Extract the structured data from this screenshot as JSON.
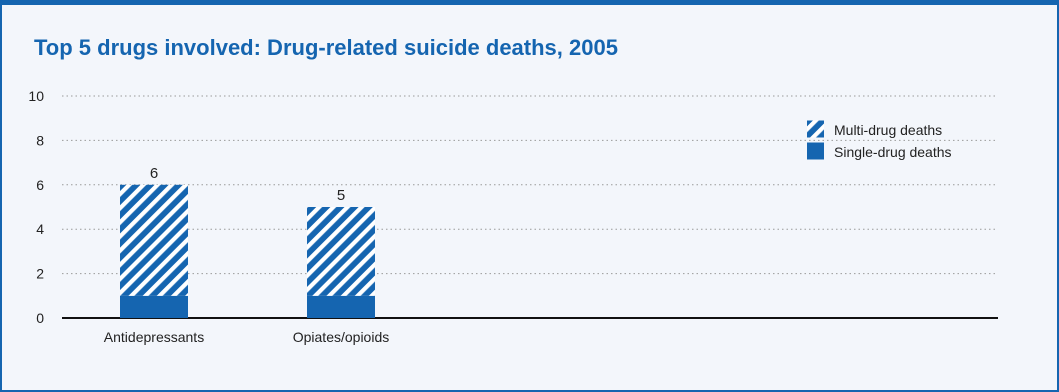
{
  "title": "Top 5 drugs involved: Drug-related suicide deaths, 2005",
  "colors": {
    "accent": "#1565b0",
    "background": "#f3f6fb",
    "grid": "#9a9a9a",
    "axis": "#111111",
    "stripe_light": "#ffffff"
  },
  "chart_data": {
    "type": "bar",
    "stacked": true,
    "title": "Top 5 drugs involved: Drug-related suicide deaths, 2005",
    "categories": [
      "Antidepressants",
      "Opiates/opioids"
    ],
    "series": [
      {
        "name": "Single-drug deaths",
        "values": [
          1,
          1
        ],
        "pattern": "solid"
      },
      {
        "name": "Multi-drug deaths",
        "values": [
          5,
          4
        ],
        "pattern": "hatched"
      }
    ],
    "totals": [
      6,
      5
    ],
    "ylim": [
      0,
      10
    ],
    "yticks": [
      0,
      2,
      4,
      6,
      8,
      10
    ],
    "xlabel": "",
    "ylabel": "",
    "grid": "horizontal dotted",
    "legend": {
      "placement": "top-right",
      "entries": [
        {
          "label": "Multi-drug deaths",
          "pattern": "hatched"
        },
        {
          "label": "Single-drug deaths",
          "pattern": "solid"
        }
      ]
    }
  }
}
